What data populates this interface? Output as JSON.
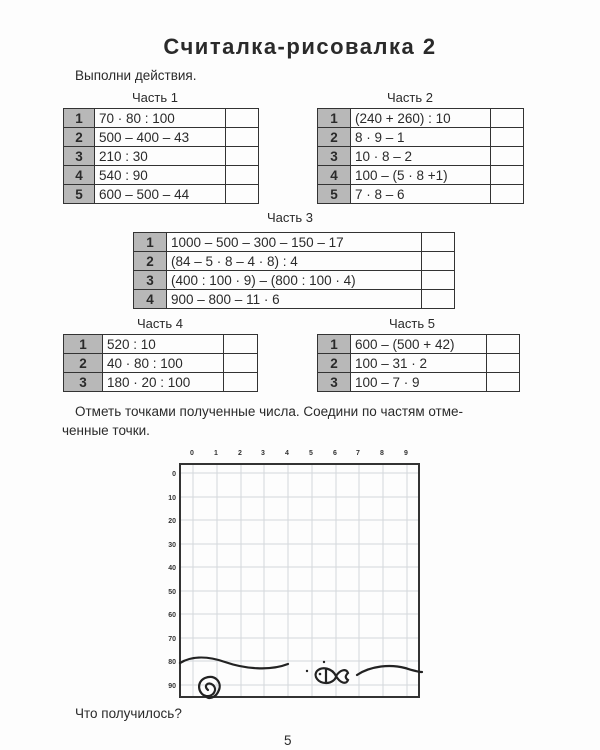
{
  "title": "Считалка-рисовалка 2",
  "instruction": "Выполни действия.",
  "parts": [
    {
      "label": "Часть 1",
      "rows": [
        {
          "n": "1",
          "expr": "70 · 80 : 100",
          "answer": ""
        },
        {
          "n": "2",
          "expr": "500 – 400 – 43",
          "answer": ""
        },
        {
          "n": "3",
          "expr": "210 : 30",
          "answer": ""
        },
        {
          "n": "4",
          "expr": "540 : 90",
          "answer": ""
        },
        {
          "n": "5",
          "expr": "600 – 500 – 44",
          "answer": ""
        }
      ]
    },
    {
      "label": "Часть 2",
      "rows": [
        {
          "n": "1",
          "expr": "(240 + 260) : 10",
          "answer": ""
        },
        {
          "n": "2",
          "expr": "8 · 9 – 1",
          "answer": ""
        },
        {
          "n": "3",
          "expr": "10 · 8 – 2",
          "answer": ""
        },
        {
          "n": "4",
          "expr": "100 – (5 · 8 +1)",
          "answer": ""
        },
        {
          "n": "5",
          "expr": "7 · 8 – 6",
          "answer": ""
        }
      ]
    },
    {
      "label": "Часть 3",
      "rows": [
        {
          "n": "1",
          "expr": "1000 – 500 – 300 – 150 – 17",
          "answer": ""
        },
        {
          "n": "2",
          "expr": "(84 – 5 · 8 – 4 · 8) : 4",
          "answer": ""
        },
        {
          "n": "3",
          "expr": "(400 : 100 · 9) – (800 : 100 · 4)",
          "answer": ""
        },
        {
          "n": "4",
          "expr": "900 – 800 – 11 · 6",
          "answer": ""
        }
      ]
    },
    {
      "label": "Часть 4",
      "rows": [
        {
          "n": "1",
          "expr": "520 : 10",
          "answer": ""
        },
        {
          "n": "2",
          "expr": "40 · 80 : 100",
          "answer": ""
        },
        {
          "n": "3",
          "expr": "180 · 20 : 100",
          "answer": ""
        }
      ]
    },
    {
      "label": "Часть 5",
      "rows": [
        {
          "n": "1",
          "expr": "600 – (500 + 42)",
          "answer": ""
        },
        {
          "n": "2",
          "expr": "100 – 31 · 2",
          "answer": ""
        },
        {
          "n": "3",
          "expr": "100 – 7 · 9",
          "answer": ""
        }
      ]
    }
  ],
  "task_line1": "Отметь точками полученные числа. Соедини по частям отме-",
  "task_line2": "ченные точки.",
  "grid": {
    "x_labels": [
      "0",
      "1",
      "2",
      "3",
      "4",
      "5",
      "6",
      "7",
      "8",
      "9"
    ],
    "y_labels": [
      "0",
      "10",
      "20",
      "30",
      "40",
      "50",
      "60",
      "70",
      "80",
      "90"
    ]
  },
  "question": "Что получилось?",
  "page_number": "5"
}
